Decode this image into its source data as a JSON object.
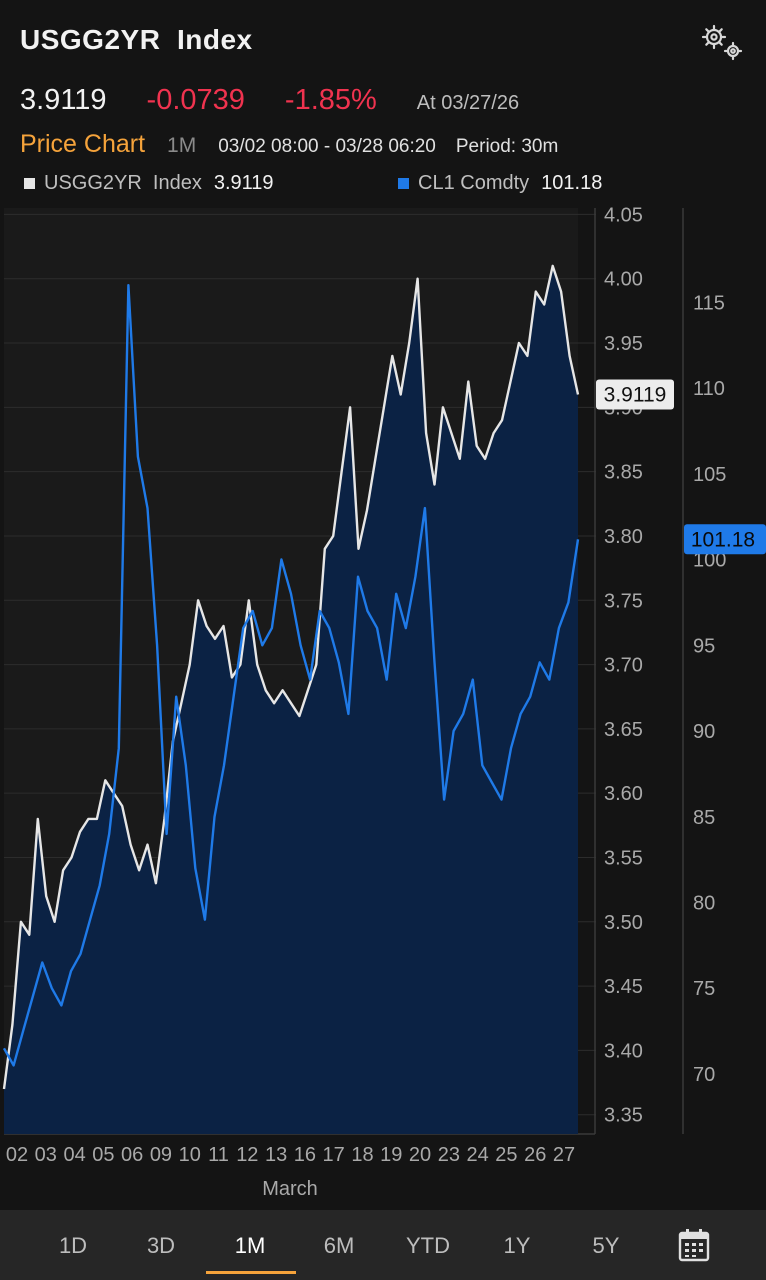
{
  "header": {
    "title": "USGG2YR  Index",
    "price": "3.9119",
    "change": "-0.0739",
    "change_pct": "-1.85%",
    "as_of": "At 03/27/26",
    "chart_title": "Price Chart",
    "range": "1M",
    "date_range": "03/02 08:00 - 03/28 06:20",
    "period": "Period: 30m"
  },
  "legend": [
    {
      "name": "USGG2YR  Index",
      "value": "3.9119",
      "color": "#e6e6e6"
    },
    {
      "name": "CL1 Comdty",
      "value": "101.18",
      "color": "#1f7ae8"
    }
  ],
  "tabs": [
    {
      "label": "1D",
      "active": false
    },
    {
      "label": "3D",
      "active": false
    },
    {
      "label": "1M",
      "active": true
    },
    {
      "label": "6M",
      "active": false
    },
    {
      "label": "YTD",
      "active": false
    },
    {
      "label": "1Y",
      "active": false
    },
    {
      "label": "5Y",
      "active": false
    }
  ],
  "icons": {
    "settings": "gears-icon",
    "calendar": "calendar-icon"
  },
  "colors": {
    "accent": "#f5a33b",
    "negative": "#f0334f",
    "series1": "#e6e6e6",
    "series2": "#1f7ae8",
    "area": "#0b2244",
    "background": "#141414"
  },
  "chart_data": {
    "type": "line",
    "xlabel": "March",
    "x_ticks": [
      "02",
      "03",
      "04",
      "05",
      "06",
      "09",
      "10",
      "11",
      "12",
      "13",
      "16",
      "17",
      "18",
      "19",
      "20",
      "23",
      "24",
      "25",
      "26",
      "27"
    ],
    "y_left": {
      "ticks": [
        "3.35",
        "3.40",
        "3.45",
        "3.50",
        "3.55",
        "3.60",
        "3.65",
        "3.70",
        "3.75",
        "3.80",
        "3.85",
        "3.90",
        "3.95",
        "4.00",
        "4.05"
      ],
      "range": [
        3.335,
        4.055
      ]
    },
    "y_right": {
      "ticks": [
        "70",
        "75",
        "80",
        "85",
        "90",
        "95",
        "100",
        "105",
        "110",
        "115"
      ],
      "range": [
        66.5,
        120.5
      ]
    },
    "last_labels": {
      "left": "3.9119",
      "right": "101.18"
    },
    "series": [
      {
        "name": "USGG2YR  Index",
        "axis": "left",
        "area": true,
        "values": [
          3.37,
          3.42,
          3.5,
          3.49,
          3.58,
          3.52,
          3.5,
          3.54,
          3.55,
          3.57,
          3.58,
          3.58,
          3.61,
          3.6,
          3.59,
          3.56,
          3.54,
          3.56,
          3.53,
          3.58,
          3.64,
          3.67,
          3.7,
          3.75,
          3.73,
          3.72,
          3.73,
          3.69,
          3.7,
          3.75,
          3.7,
          3.68,
          3.67,
          3.68,
          3.67,
          3.66,
          3.68,
          3.7,
          3.79,
          3.8,
          3.85,
          3.9,
          3.79,
          3.82,
          3.86,
          3.9,
          3.94,
          3.91,
          3.95,
          4.0,
          3.88,
          3.84,
          3.9,
          3.88,
          3.86,
          3.92,
          3.87,
          3.86,
          3.88,
          3.89,
          3.92,
          3.95,
          3.94,
          3.99,
          3.98,
          4.01,
          3.99,
          3.94,
          3.91
        ]
      },
      {
        "name": "CL1 Comdty",
        "axis": "right",
        "area": false,
        "values": [
          71.5,
          70.5,
          72.5,
          74.5,
          76.5,
          75.0,
          74.0,
          76.0,
          77.0,
          79.0,
          81.0,
          84.0,
          89.0,
          116.0,
          106.0,
          103.0,
          95.0,
          84.0,
          92.0,
          88.0,
          82.0,
          79.0,
          85.0,
          88.0,
          92.0,
          96.0,
          97.0,
          95.0,
          96.0,
          100.0,
          98.0,
          95.0,
          93.0,
          97.0,
          96.0,
          94.0,
          91.0,
          99.0,
          97.0,
          96.0,
          93.0,
          98.0,
          96.0,
          99.0,
          103.0,
          94.0,
          86.0,
          90.0,
          91.0,
          93.0,
          88.0,
          87.0,
          86.0,
          89.0,
          91.0,
          92.0,
          94.0,
          93.0,
          96.0,
          97.5,
          101.18
        ]
      }
    ]
  }
}
